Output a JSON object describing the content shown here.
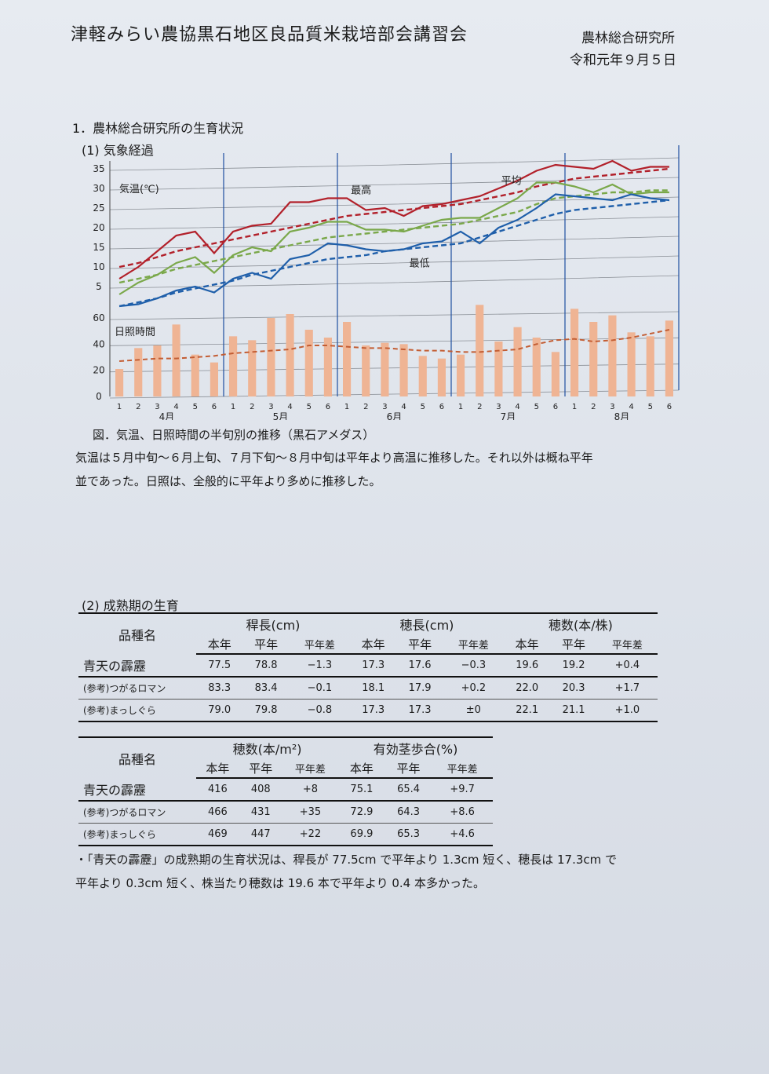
{
  "doc": {
    "title": "津軽みらい農協黒石地区良品質米栽培部会講習会",
    "org": "農林総合研究所",
    "date": "令和元年９月５日"
  },
  "section1": {
    "heading": "1．農林総合研究所の生育状況",
    "sub": "(1) 気象経過",
    "caption": "図．気温、日照時間の半旬別の推移（黒石アメダス）",
    "para_line1": "気温は５月中旬～６月上旬、７月下旬～８月中旬は平年より高温に推移した。それ以外は概ね平年",
    "para_line2": "並であった。日照は、全般的に平年より多めに推移した。"
  },
  "chart_data": [
    {
      "type": "line",
      "label": "気温(℃)",
      "ylim": [
        0,
        35
      ],
      "yticks": [
        5,
        10,
        15,
        20,
        25,
        30,
        35
      ],
      "x": [
        1,
        2,
        3,
        4,
        5,
        6,
        1,
        2,
        3,
        4,
        5,
        6,
        1,
        2,
        3,
        4,
        5,
        6,
        1,
        2,
        3,
        4,
        5,
        6,
        1,
        2,
        3,
        4,
        5,
        6
      ],
      "months": [
        "4月",
        "5月",
        "6月",
        "7月",
        "8月"
      ],
      "series": [
        {
          "name": "最高",
          "color": "#b2202a",
          "values": [
            7,
            10,
            14,
            18,
            19,
            13.5,
            19,
            20.5,
            21,
            26.5,
            26.5,
            27.5,
            27.5,
            24.5,
            25,
            23,
            25.5,
            26,
            27,
            28,
            30,
            32,
            34.5,
            36,
            35.5,
            35,
            37,
            34.5,
            35.5,
            35.5
          ]
        },
        {
          "name": "平均",
          "color": "#7aa84a",
          "values": [
            3,
            6,
            8,
            11,
            12.5,
            8.5,
            13,
            15,
            14,
            19,
            20,
            21.5,
            21.5,
            19.5,
            19.5,
            19,
            20.5,
            22,
            22.5,
            22.5,
            25,
            27.5,
            31.5,
            31.5,
            30.5,
            29,
            31,
            28.5,
            29,
            29
          ]
        },
        {
          "name": "最低",
          "color": "#1f5faa",
          "values": [
            0,
            0.5,
            2,
            4,
            5,
            3.5,
            7,
            8.5,
            7,
            12,
            13,
            16,
            15.5,
            14.5,
            14,
            14.5,
            16,
            16.5,
            19,
            16,
            20,
            22,
            25,
            28.5,
            28,
            27.5,
            27,
            28.5,
            27.5,
            27
          ]
        }
      ],
      "normals": [
        {
          "color": "#b2202a",
          "values": [
            10,
            11,
            12.5,
            14,
            15,
            16,
            17,
            18,
            19,
            20,
            21,
            22,
            23,
            23.5,
            24,
            24.5,
            25,
            25.5,
            26,
            27,
            28,
            29,
            30.5,
            31.5,
            32.5,
            33,
            33.5,
            34,
            34.5,
            35
          ]
        },
        {
          "color": "#7aa84a",
          "values": [
            6,
            7,
            8,
            9.5,
            10.5,
            11.5,
            12.5,
            13.5,
            14.5,
            15.5,
            16.5,
            17.5,
            18,
            18.5,
            19,
            19.5,
            20,
            20.5,
            21,
            22,
            23,
            24,
            26,
            27.5,
            28,
            28.5,
            29,
            29,
            29.5,
            29.5
          ]
        },
        {
          "color": "#1f5faa",
          "values": [
            0,
            1,
            2,
            3.5,
            4.5,
            5.5,
            6.5,
            8,
            9,
            10,
            11,
            12,
            12.5,
            13,
            14,
            14.5,
            15,
            15.5,
            16,
            17.5,
            19,
            20.5,
            22,
            23.5,
            24.5,
            25,
            25.5,
            26,
            26.5,
            27
          ]
        }
      ]
    },
    {
      "type": "bar",
      "label": "日照時間",
      "ylim": [
        0,
        60
      ],
      "yticks": [
        0,
        20,
        40,
        60
      ],
      "categories": [
        "1",
        "2",
        "3",
        "4",
        "5",
        "6",
        "1",
        "2",
        "3",
        "4",
        "5",
        "6",
        "1",
        "2",
        "3",
        "4",
        "5",
        "6",
        "1",
        "2",
        "3",
        "4",
        "5",
        "6",
        "1",
        "2",
        "3",
        "4",
        "5",
        "6"
      ],
      "values": [
        21,
        37,
        39,
        55,
        32,
        26,
        46,
        43,
        60,
        63,
        51,
        45,
        57,
        39,
        41,
        40,
        31,
        29,
        32,
        70,
        42,
        53,
        45,
        34,
        67,
        57,
        62,
        49,
        46,
        58
      ],
      "normal": [
        27,
        28,
        29,
        29,
        30,
        31,
        33,
        34,
        35,
        36,
        39,
        39,
        38,
        37,
        37,
        36,
        35,
        35,
        34,
        34,
        35,
        36,
        40,
        43,
        44,
        42,
        43,
        45,
        48,
        51
      ],
      "bar_color": "#efb494",
      "normal_color": "#c35d33"
    }
  ],
  "section2": {
    "sub": "(2) 成熟期の生育",
    "table1": {
      "name_header": "品種名",
      "groups": [
        "稈長(cm)",
        "穂長(cm)",
        "穂数(本/株)"
      ],
      "cols": [
        "本年",
        "平年",
        "平年差"
      ],
      "rows": [
        {
          "name": "青天の霹靂",
          "vals": [
            "77.5",
            "78.8",
            "−1.3",
            "17.3",
            "17.6",
            "−0.3",
            "19.6",
            "19.2",
            "+0.4"
          ]
        },
        {
          "name": "(参考)つがるロマン",
          "vals": [
            "83.3",
            "83.4",
            "−0.1",
            "18.1",
            "17.9",
            "+0.2",
            "22.0",
            "20.3",
            "+1.7"
          ]
        },
        {
          "name": "(参考)まっしぐら",
          "vals": [
            "79.0",
            "79.8",
            "−0.8",
            "17.3",
            "17.3",
            "±0",
            "22.1",
            "21.1",
            "+1.0"
          ]
        }
      ]
    },
    "table2": {
      "name_header": "品種名",
      "groups": [
        "穂数(本/m²)",
        "有効茎歩合(%)"
      ],
      "cols": [
        "本年",
        "平年",
        "平年差"
      ],
      "rows": [
        {
          "name": "青天の霹靂",
          "vals": [
            "416",
            "408",
            "+8",
            "75.1",
            "65.4",
            "+9.7"
          ]
        },
        {
          "name": "(参考)つがるロマン",
          "vals": [
            "466",
            "431",
            "+35",
            "72.9",
            "64.3",
            "+8.6"
          ]
        },
        {
          "name": "(参考)まっしぐら",
          "vals": [
            "469",
            "447",
            "+22",
            "69.9",
            "65.3",
            "+4.6"
          ]
        }
      ]
    },
    "note_line1": "・「青天の霹靂」の成熟期の生育状況は、稈長が 77.5cm で平年より 1.3cm 短く、穂長は 17.3cm で",
    "note_line2": "平年より 0.3cm 短く、株当たり穂数は 19.6 本で平年より 0.4 本多かった。"
  }
}
